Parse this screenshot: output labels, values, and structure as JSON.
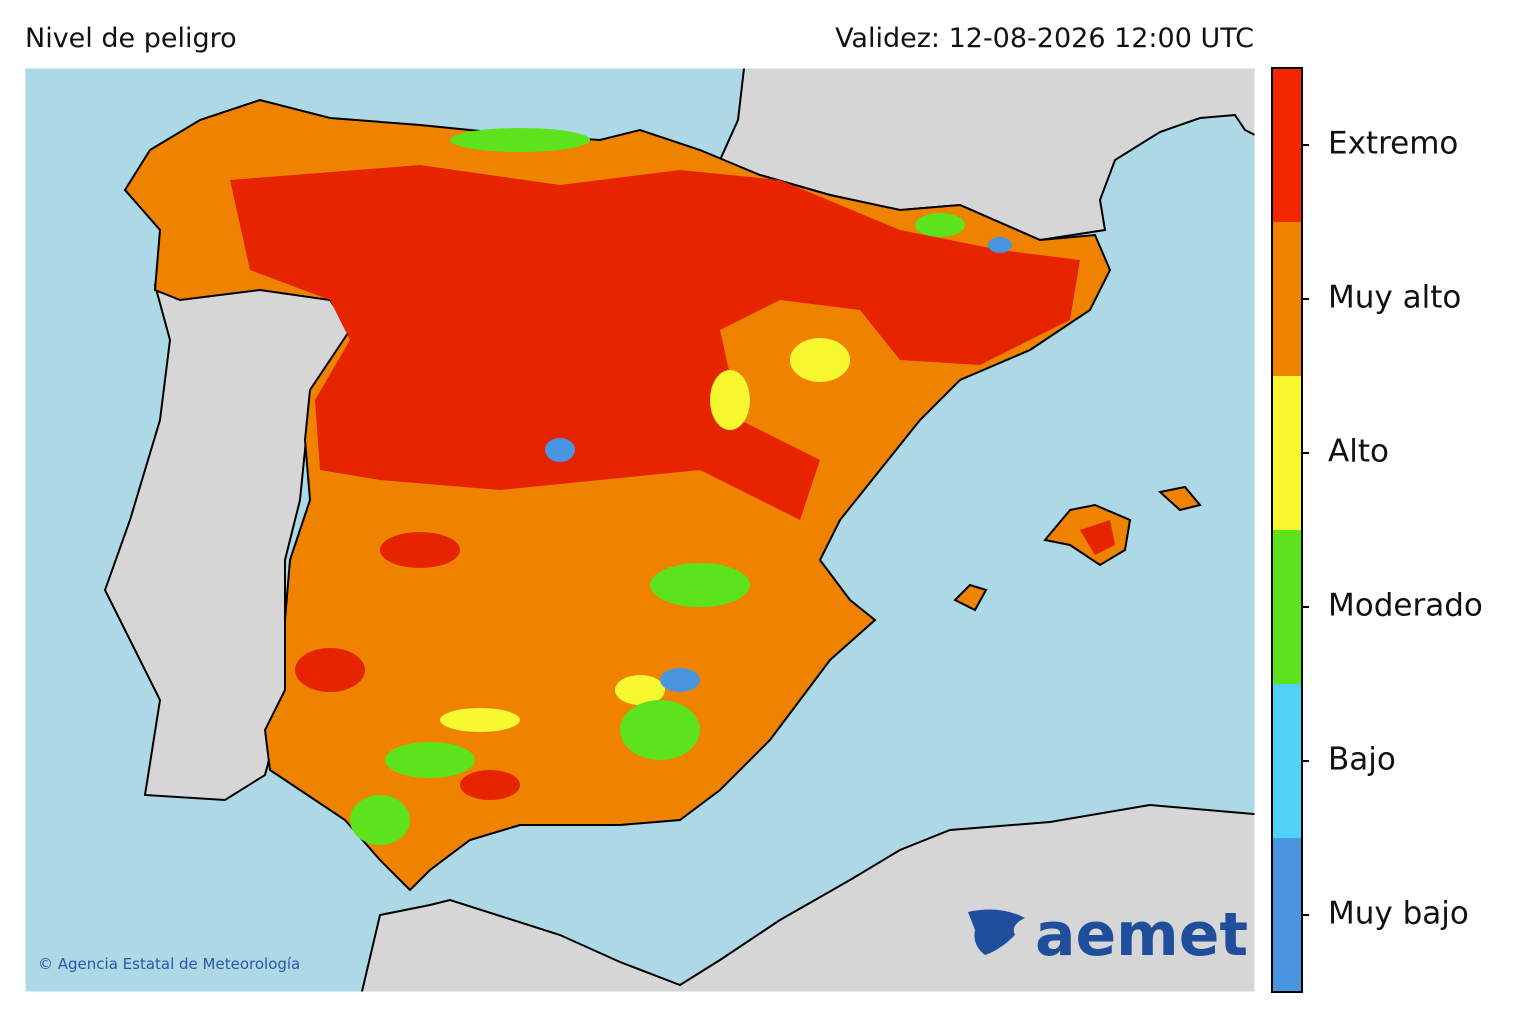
{
  "header": {
    "title": "Nivel de peligro",
    "validity": "Validez: 12-08-2026 12:00 UTC"
  },
  "legend": {
    "levels": [
      {
        "label": "Extremo",
        "color": "#f42800"
      },
      {
        "label": "Muy alto",
        "color": "#ef8300"
      },
      {
        "label": "Alto",
        "color": "#f8f830"
      },
      {
        "label": "Moderado",
        "color": "#5de31e"
      },
      {
        "label": "Bajo",
        "color": "#50d2f8"
      },
      {
        "label": "Muy bajo",
        "color": "#4a95e0"
      }
    ]
  },
  "credit": "© Agencia Estatal de Meteorología",
  "logo": "aemet"
}
